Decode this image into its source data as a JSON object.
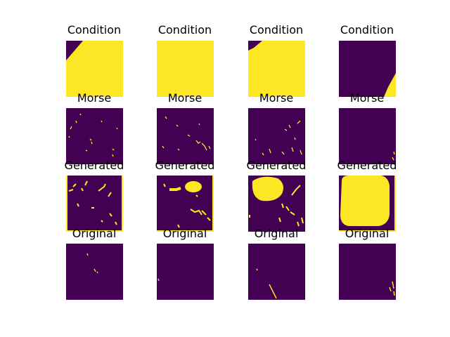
{
  "figure": {
    "row_titles": [
      "Condition",
      "Morse",
      "Generated",
      "Original"
    ],
    "columns": 4,
    "colormap": {
      "low": "#440154",
      "high": "#fde725"
    }
  }
}
